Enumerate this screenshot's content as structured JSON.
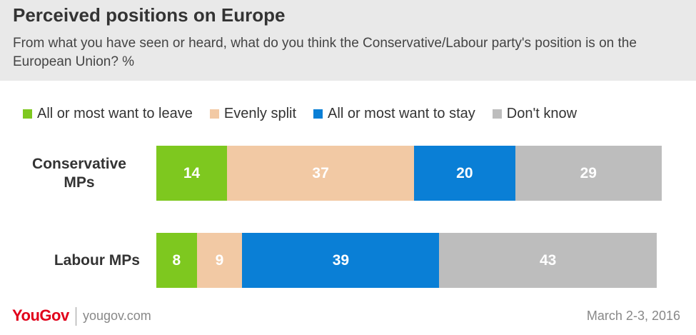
{
  "chart_data": {
    "type": "bar",
    "orientation": "horizontal",
    "stacked": true,
    "title": "Perceived positions on Europe",
    "subtitle": "From what you have seen or heard, what do you think the Conservative/Labour party's position is on the European Union? %",
    "categories": [
      "Conservative MPs",
      "Labour MPs"
    ],
    "series": [
      {
        "name": "All or most want to leave",
        "color": "#7ec81f",
        "values": [
          14,
          8
        ]
      },
      {
        "name": "Evenly split",
        "color": "#f2c9a4",
        "values": [
          37,
          9
        ]
      },
      {
        "name": "All or most want to stay",
        "color": "#0a7fd6",
        "values": [
          20,
          39
        ]
      },
      {
        "name": "Don't know",
        "color": "#bdbdbd",
        "values": [
          29,
          43
        ]
      }
    ],
    "legend_position": "top",
    "grid": false
  },
  "footer": {
    "brand": "YouGov",
    "url": "yougov.com",
    "date": "March 2-3, 2016"
  }
}
